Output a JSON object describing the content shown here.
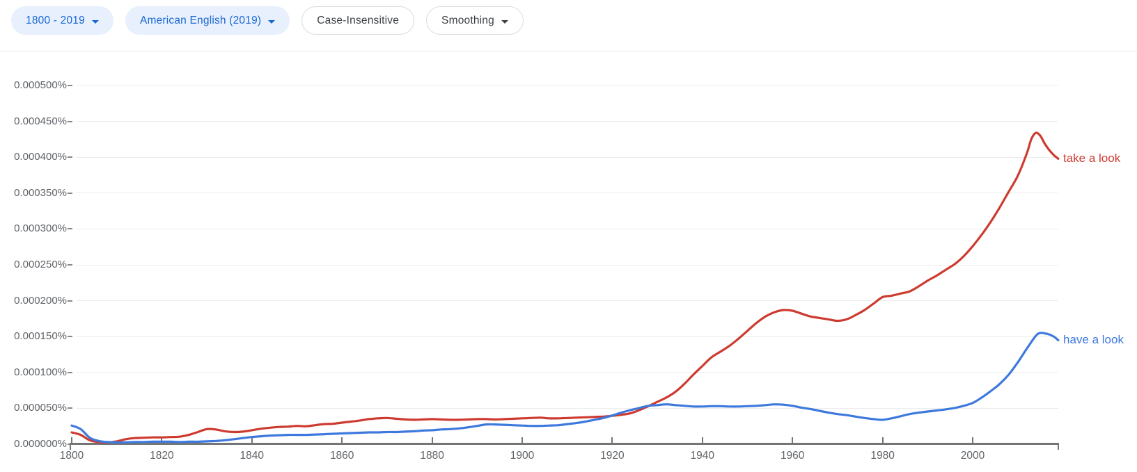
{
  "toolbar": {
    "chips": [
      {
        "id": "year-range",
        "label": "1800 - 2019",
        "style": "filled",
        "has_dropdown": true
      },
      {
        "id": "corpus",
        "label": "American English (2019)",
        "style": "filled",
        "has_dropdown": true
      },
      {
        "id": "case-insensitive",
        "label": "Case-Insensitive",
        "style": "outlined",
        "has_dropdown": false
      },
      {
        "id": "smoothing",
        "label": "Smoothing",
        "style": "outlined",
        "has_dropdown": true
      }
    ]
  },
  "colors": {
    "chip_filled_bg": "#e8f0fe",
    "chip_filled_text": "#1967d2",
    "chip_outlined_border": "#dadce0",
    "chip_outlined_text": "#3c4043",
    "divider": "#e8eaed",
    "gridline": "#ececec",
    "axis": "#757575",
    "axis_label_text": "#5f6368",
    "series_take_a_look": "#cd3b30",
    "series_have_a_look": "#3d79dd"
  },
  "chart_data": {
    "type": "line",
    "title": "",
    "xlabel": "",
    "ylabel": "",
    "grid": "horizontal-only",
    "legend_position": "line-end-labels",
    "xlim": [
      1800,
      2019
    ],
    "x_ticks": [
      1800,
      1820,
      1840,
      1860,
      1880,
      1900,
      1920,
      1940,
      1960,
      1980,
      2000
    ],
    "y_value_unit": "millionths of a percent (value x 1e-6 = %)",
    "ylim": [
      0,
      500
    ],
    "y_ticks": [
      {
        "label": "0.000000%",
        "value": 0
      },
      {
        "label": "0.000050%",
        "value": 50
      },
      {
        "label": "0.000100%",
        "value": 100
      },
      {
        "label": "0.000150%",
        "value": 150
      },
      {
        "label": "0.000200%",
        "value": 200
      },
      {
        "label": "0.000250%",
        "value": 250
      },
      {
        "label": "0.000300%",
        "value": 300
      },
      {
        "label": "0.000350%",
        "value": 350
      },
      {
        "label": "0.000400%",
        "value": 400
      },
      {
        "label": "0.000450%",
        "value": 450
      },
      {
        "label": "0.000500%",
        "value": 500
      }
    ],
    "series": [
      {
        "name": "take a look",
        "color": "#cd3b30",
        "points": [
          [
            1800,
            16.5
          ],
          [
            1802,
            13
          ],
          [
            1804,
            5.5
          ],
          [
            1806,
            3
          ],
          [
            1808,
            2.5
          ],
          [
            1810,
            4
          ],
          [
            1812,
            7
          ],
          [
            1814,
            8.5
          ],
          [
            1816,
            9
          ],
          [
            1818,
            9.5
          ],
          [
            1820,
            9.5
          ],
          [
            1822,
            10
          ],
          [
            1824,
            10.5
          ],
          [
            1826,
            13
          ],
          [
            1828,
            17
          ],
          [
            1830,
            21
          ],
          [
            1832,
            20.5
          ],
          [
            1834,
            18
          ],
          [
            1836,
            17
          ],
          [
            1838,
            17.5
          ],
          [
            1840,
            19.5
          ],
          [
            1842,
            21.5
          ],
          [
            1844,
            23
          ],
          [
            1846,
            24
          ],
          [
            1848,
            24.5
          ],
          [
            1850,
            25.5
          ],
          [
            1852,
            25
          ],
          [
            1854,
            26.5
          ],
          [
            1856,
            28
          ],
          [
            1858,
            28.5
          ],
          [
            1860,
            30
          ],
          [
            1862,
            31.5
          ],
          [
            1864,
            33
          ],
          [
            1866,
            35
          ],
          [
            1868,
            36
          ],
          [
            1870,
            36.5
          ],
          [
            1872,
            35.5
          ],
          [
            1874,
            34.5
          ],
          [
            1876,
            34
          ],
          [
            1878,
            34.5
          ],
          [
            1880,
            35
          ],
          [
            1882,
            34.5
          ],
          [
            1884,
            34
          ],
          [
            1886,
            34
          ],
          [
            1888,
            34.5
          ],
          [
            1890,
            35
          ],
          [
            1892,
            35
          ],
          [
            1894,
            34.5
          ],
          [
            1896,
            35
          ],
          [
            1898,
            35.5
          ],
          [
            1900,
            36
          ],
          [
            1902,
            36.5
          ],
          [
            1904,
            37
          ],
          [
            1906,
            36
          ],
          [
            1908,
            36
          ],
          [
            1910,
            36.5
          ],
          [
            1912,
            37
          ],
          [
            1914,
            37.5
          ],
          [
            1916,
            38
          ],
          [
            1918,
            38.5
          ],
          [
            1920,
            39.5
          ],
          [
            1922,
            41
          ],
          [
            1924,
            43
          ],
          [
            1926,
            47.5
          ],
          [
            1928,
            53
          ],
          [
            1930,
            59
          ],
          [
            1932,
            65
          ],
          [
            1934,
            73
          ],
          [
            1936,
            84
          ],
          [
            1938,
            97
          ],
          [
            1940,
            109
          ],
          [
            1942,
            121
          ],
          [
            1944,
            129
          ],
          [
            1946,
            137
          ],
          [
            1948,
            147
          ],
          [
            1950,
            158
          ],
          [
            1952,
            169
          ],
          [
            1954,
            178
          ],
          [
            1956,
            184
          ],
          [
            1958,
            187
          ],
          [
            1960,
            186
          ],
          [
            1962,
            182
          ],
          [
            1964,
            178
          ],
          [
            1966,
            176
          ],
          [
            1968,
            174
          ],
          [
            1970,
            172
          ],
          [
            1972,
            174
          ],
          [
            1974,
            180
          ],
          [
            1976,
            187
          ],
          [
            1978,
            196
          ],
          [
            1980,
            205
          ],
          [
            1982,
            207
          ],
          [
            1984,
            210
          ],
          [
            1986,
            213
          ],
          [
            1988,
            220
          ],
          [
            1990,
            228
          ],
          [
            1992,
            235
          ],
          [
            1994,
            243
          ],
          [
            1996,
            251
          ],
          [
            1998,
            262
          ],
          [
            2000,
            276
          ],
          [
            2002,
            292
          ],
          [
            2004,
            310
          ],
          [
            2006,
            330
          ],
          [
            2008,
            352
          ],
          [
            2010,
            374
          ],
          [
            2012,
            405
          ],
          [
            2013,
            425
          ],
          [
            2014,
            434
          ],
          [
            2015,
            430
          ],
          [
            2016,
            419
          ],
          [
            2017,
            410
          ],
          [
            2018,
            403
          ],
          [
            2019,
            398
          ]
        ]
      },
      {
        "name": "have a look",
        "color": "#3d79dd",
        "points": [
          [
            1800,
            26
          ],
          [
            1802,
            21
          ],
          [
            1804,
            9
          ],
          [
            1806,
            4.5
          ],
          [
            1808,
            3
          ],
          [
            1810,
            2.5
          ],
          [
            1812,
            2.5
          ],
          [
            1814,
            3
          ],
          [
            1816,
            3
          ],
          [
            1818,
            3.5
          ],
          [
            1820,
            3.5
          ],
          [
            1822,
            3.5
          ],
          [
            1824,
            3
          ],
          [
            1826,
            3.5
          ],
          [
            1828,
            3.5
          ],
          [
            1830,
            4
          ],
          [
            1832,
            4.5
          ],
          [
            1834,
            5.5
          ],
          [
            1836,
            7
          ],
          [
            1838,
            8.5
          ],
          [
            1840,
            10
          ],
          [
            1842,
            11
          ],
          [
            1844,
            12
          ],
          [
            1846,
            12.5
          ],
          [
            1848,
            13
          ],
          [
            1850,
            13
          ],
          [
            1852,
            13
          ],
          [
            1854,
            13.5
          ],
          [
            1856,
            14
          ],
          [
            1858,
            14.5
          ],
          [
            1860,
            15
          ],
          [
            1862,
            15.5
          ],
          [
            1864,
            16
          ],
          [
            1866,
            16.5
          ],
          [
            1868,
            16.5
          ],
          [
            1870,
            17
          ],
          [
            1872,
            17
          ],
          [
            1874,
            17.5
          ],
          [
            1876,
            18
          ],
          [
            1878,
            19
          ],
          [
            1880,
            19.5
          ],
          [
            1882,
            20.5
          ],
          [
            1884,
            21
          ],
          [
            1886,
            22
          ],
          [
            1888,
            23.5
          ],
          [
            1890,
            25.5
          ],
          [
            1892,
            27.5
          ],
          [
            1894,
            27.5
          ],
          [
            1896,
            27
          ],
          [
            1898,
            26.5
          ],
          [
            1900,
            26
          ],
          [
            1902,
            25.5
          ],
          [
            1904,
            25.5
          ],
          [
            1906,
            26
          ],
          [
            1908,
            26.5
          ],
          [
            1910,
            28
          ],
          [
            1912,
            29.5
          ],
          [
            1914,
            31.5
          ],
          [
            1916,
            34
          ],
          [
            1918,
            36.5
          ],
          [
            1920,
            40
          ],
          [
            1922,
            44
          ],
          [
            1924,
            47.5
          ],
          [
            1926,
            50.5
          ],
          [
            1928,
            53.5
          ],
          [
            1930,
            54.5
          ],
          [
            1932,
            55.5
          ],
          [
            1934,
            54.5
          ],
          [
            1936,
            53.5
          ],
          [
            1938,
            52.5
          ],
          [
            1940,
            52.5
          ],
          [
            1942,
            53
          ],
          [
            1944,
            53
          ],
          [
            1946,
            52.5
          ],
          [
            1948,
            52.5
          ],
          [
            1950,
            53
          ],
          [
            1952,
            53.5
          ],
          [
            1954,
            54.5
          ],
          [
            1956,
            55.5
          ],
          [
            1958,
            55
          ],
          [
            1960,
            53.5
          ],
          [
            1962,
            51
          ],
          [
            1964,
            49
          ],
          [
            1966,
            46.5
          ],
          [
            1968,
            44
          ],
          [
            1970,
            42
          ],
          [
            1972,
            40.5
          ],
          [
            1974,
            38.5
          ],
          [
            1976,
            36.5
          ],
          [
            1978,
            35
          ],
          [
            1980,
            34
          ],
          [
            1982,
            36
          ],
          [
            1984,
            39
          ],
          [
            1986,
            42
          ],
          [
            1988,
            44
          ],
          [
            1990,
            45.5
          ],
          [
            1992,
            47
          ],
          [
            1994,
            48.5
          ],
          [
            1996,
            50.5
          ],
          [
            1998,
            53.5
          ],
          [
            2000,
            57.5
          ],
          [
            2002,
            65
          ],
          [
            2004,
            74
          ],
          [
            2006,
            84
          ],
          [
            2008,
            97
          ],
          [
            2010,
            114
          ],
          [
            2012,
            133
          ],
          [
            2014,
            151
          ],
          [
            2015,
            155
          ],
          [
            2016,
            154.5
          ],
          [
            2017,
            153
          ],
          [
            2018,
            150
          ],
          [
            2019,
            145
          ]
        ]
      }
    ]
  }
}
